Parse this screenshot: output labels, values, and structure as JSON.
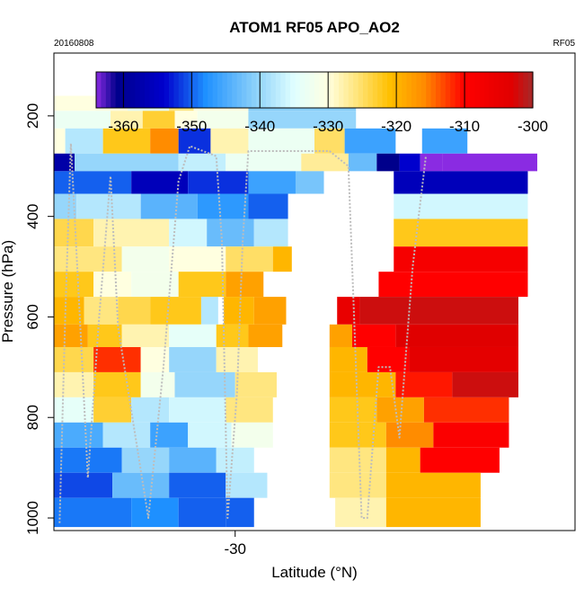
{
  "chart_data": {
    "type": "heatmap",
    "title": "ATOM1 RF05 APO_AO2",
    "date_label": "20160808",
    "flight_label": "RF05",
    "xlabel": "Latitude (°N)",
    "ylabel": "Pressure (hPa)",
    "x_ticks": [
      -30
    ],
    "y_ticks": [
      200,
      400,
      600,
      800,
      1000
    ],
    "xlim": [
      -39.6,
      -12.0
    ],
    "ylim": [
      1025,
      75
    ],
    "y_reversed": true,
    "colorbar": {
      "range": [
        -364,
        -300
      ],
      "ticks": [
        -360,
        -350,
        -340,
        -330,
        -320,
        -310,
        -300
      ],
      "stops": [
        {
          "v": -364,
          "c": "#8a2be2"
        },
        {
          "v": -361,
          "c": "#00008b"
        },
        {
          "v": -354,
          "c": "#0000cd"
        },
        {
          "v": -348,
          "c": "#1e90ff"
        },
        {
          "v": -341,
          "c": "#87cefa"
        },
        {
          "v": -335,
          "c": "#e0ffff"
        },
        {
          "v": -330,
          "c": "#ffffe0"
        },
        {
          "v": -326,
          "c": "#ffe680"
        },
        {
          "v": -321,
          "c": "#ffc000"
        },
        {
          "v": -316,
          "c": "#ff8c00"
        },
        {
          "v": -310,
          "c": "#ff0000"
        },
        {
          "v": -303,
          "c": "#e00000"
        },
        {
          "v": -300,
          "c": "#a52a2a"
        }
      ]
    },
    "heatmap_bands": [
      {
        "p": [
          160,
          190
        ],
        "cells": [
          [
            -39.6,
            -35.7,
            -330
          ],
          [
            -35.7,
            -33.5,
            -334
          ],
          [
            -33.5,
            -32.2,
            -326
          ],
          [
            -32.2,
            -29.3,
            -330
          ],
          [
            -29.3,
            -23.6,
            -341
          ],
          [
            -23.6,
            -14.0,
            null
          ]
        ]
      },
      {
        "p": [
          190,
          225
        ],
        "cells": [
          [
            -39.6,
            -36.6,
            -333
          ],
          [
            -36.6,
            -34.9,
            -328
          ],
          [
            -34.9,
            -33.2,
            -323
          ],
          [
            -33.2,
            -32.0,
            -330
          ],
          [
            -32.0,
            -29.3,
            -332
          ],
          [
            -29.3,
            -23.6,
            -340
          ]
        ]
      },
      {
        "p": [
          225,
          275
        ],
        "cells": [
          [
            -39.6,
            -39.0,
            -330
          ],
          [
            -39.0,
            -37.0,
            -338
          ],
          [
            -37.0,
            -34.5,
            -322
          ],
          [
            -34.5,
            -33.0,
            -316
          ],
          [
            -33.0,
            -31.3,
            -352
          ],
          [
            -31.3,
            -29.3,
            -328
          ],
          [
            -29.3,
            -25.8,
            -333
          ],
          [
            -25.8,
            -24.2,
            -325
          ],
          [
            -24.2,
            -21.5,
            -346
          ],
          [
            -20.1,
            -17.7,
            -346
          ]
        ]
      },
      {
        "p": [
          275,
          310
        ],
        "cells": [
          [
            -39.6,
            -38.5,
            -358
          ],
          [
            -38.5,
            -33.0,
            -340
          ],
          [
            -33.0,
            -30.5,
            -337
          ],
          [
            -30.5,
            -26.5,
            -333
          ],
          [
            -26.5,
            -24.0,
            -327
          ],
          [
            -24.0,
            -22.5,
            -343
          ],
          [
            -22.5,
            -21.3,
            -361
          ],
          [
            -21.3,
            -20.2,
            -354
          ],
          [
            -20.2,
            -19.0,
            -364
          ],
          [
            -19.0,
            -14.0,
            -364
          ]
        ]
      },
      {
        "p": [
          310,
          355
        ],
        "cells": [
          [
            -39.6,
            -35.5,
            -350
          ],
          [
            -35.5,
            -32.5,
            -356
          ],
          [
            -32.5,
            -29.3,
            -352
          ],
          [
            -29.3,
            -26.8,
            -346
          ],
          [
            -26.8,
            -25.3,
            -342
          ],
          [
            -21.6,
            -14.5,
            -356
          ]
        ]
      },
      {
        "p": [
          355,
          405
        ],
        "cells": [
          [
            -39.6,
            -38.4,
            -340
          ],
          [
            -38.4,
            -35.0,
            -338
          ],
          [
            -35.0,
            -32.0,
            -344
          ],
          [
            -32.0,
            -29.3,
            -347
          ],
          [
            -29.3,
            -27.2,
            -350
          ],
          [
            -21.6,
            -14.5,
            -336
          ]
        ]
      },
      {
        "p": [
          405,
          460
        ],
        "cells": [
          [
            -39.6,
            -37.5,
            -324
          ],
          [
            -37.5,
            -33.5,
            -328
          ],
          [
            -33.5,
            -31.5,
            -336
          ],
          [
            -31.5,
            -29.0,
            -343
          ],
          [
            -29.0,
            -27.2,
            -338
          ],
          [
            -21.6,
            -14.5,
            -322
          ]
        ]
      },
      {
        "p": [
          460,
          510
        ],
        "cells": [
          [
            -39.6,
            -36.0,
            -326
          ],
          [
            -36.0,
            -33.5,
            -332
          ],
          [
            -33.5,
            -30.5,
            -330
          ],
          [
            -30.5,
            -28.0,
            -325
          ],
          [
            -28.0,
            -27.0,
            -320
          ],
          [
            -21.6,
            -14.5,
            -308
          ]
        ]
      },
      {
        "p": [
          510,
          560
        ],
        "cells": [
          [
            -39.6,
            -37.5,
            -322
          ],
          [
            -37.5,
            -35.5,
            -330
          ],
          [
            -35.5,
            -33.0,
            -332
          ],
          [
            -33.0,
            -30.5,
            -322
          ],
          [
            -30.5,
            -28.5,
            -318
          ],
          [
            -22.4,
            -14.5,
            -310
          ]
        ]
      },
      {
        "p": [
          560,
          615
        ],
        "cells": [
          [
            -39.6,
            -38.0,
            -320
          ],
          [
            -38.0,
            -36.2,
            -326
          ],
          [
            -36.2,
            -34.5,
            -324
          ],
          [
            -34.5,
            -31.8,
            -322
          ],
          [
            -31.8,
            -30.9,
            -338
          ],
          [
            -30.6,
            -29.0,
            -320
          ],
          [
            -29.0,
            -27.3,
            -318
          ],
          [
            -24.6,
            -23.4,
            -305
          ],
          [
            -23.4,
            -15.0,
            -302
          ]
        ]
      },
      {
        "p": [
          615,
          660
        ],
        "cells": [
          [
            -39.6,
            -37.8,
            -318
          ],
          [
            -37.8,
            -36.0,
            -322
          ],
          [
            -36.0,
            -33.5,
            -328
          ],
          [
            -33.5,
            -31.0,
            -334
          ],
          [
            -31.0,
            -29.3,
            -322
          ],
          [
            -29.3,
            -27.5,
            -318
          ],
          [
            -25.0,
            -23.8,
            -318
          ],
          [
            -23.8,
            -21.5,
            -310
          ],
          [
            -21.5,
            -15.0,
            -303
          ]
        ]
      },
      {
        "p": [
          660,
          710
        ],
        "cells": [
          [
            -39.6,
            -37.5,
            -324
          ],
          [
            -37.5,
            -35.0,
            -312
          ],
          [
            -35.0,
            -33.5,
            -330
          ],
          [
            -33.5,
            -31.0,
            -340
          ],
          [
            -31.0,
            -28.8,
            -328
          ],
          [
            -25.0,
            -23.0,
            -320
          ],
          [
            -23.0,
            -20.8,
            -310
          ],
          [
            -20.8,
            -15.0,
            -304
          ]
        ]
      },
      {
        "p": [
          710,
          760
        ],
        "cells": [
          [
            -39.6,
            -37.5,
            -328
          ],
          [
            -37.5,
            -35.0,
            -322
          ],
          [
            -35.0,
            -33.2,
            -332
          ],
          [
            -33.2,
            -30.0,
            -340
          ],
          [
            -30.0,
            -27.8,
            -326
          ],
          [
            -25.0,
            -21.5,
            -320
          ],
          [
            -21.5,
            -18.5,
            -311
          ],
          [
            -18.5,
            -15.0,
            -302
          ]
        ]
      },
      {
        "p": [
          760,
          810
        ],
        "cells": [
          [
            -39.6,
            -37.5,
            -334
          ],
          [
            -37.5,
            -35.5,
            -323
          ],
          [
            -35.5,
            -33.5,
            -338
          ],
          [
            -33.5,
            -30.5,
            -336
          ],
          [
            -30.5,
            -28.0,
            -326
          ],
          [
            -25.0,
            -22.5,
            -322
          ],
          [
            -22.5,
            -20.0,
            -318
          ],
          [
            -20.0,
            -15.5,
            -312
          ]
        ]
      },
      {
        "p": [
          810,
          860
        ],
        "cells": [
          [
            -39.6,
            -37.0,
            -345
          ],
          [
            -37.0,
            -34.5,
            -338
          ],
          [
            -34.5,
            -32.5,
            -346
          ],
          [
            -32.5,
            -30.2,
            -336
          ],
          [
            -30.2,
            -28.0,
            -332
          ],
          [
            -25.0,
            -22.0,
            -322
          ],
          [
            -22.0,
            -19.5,
            -316
          ],
          [
            -19.5,
            -15.5,
            -309
          ]
        ]
      },
      {
        "p": [
          860,
          910
        ],
        "cells": [
          [
            -39.6,
            -36.0,
            -349
          ],
          [
            -36.0,
            -33.5,
            -340
          ],
          [
            -33.5,
            -31.0,
            -344
          ],
          [
            -31.0,
            -29.0,
            -337
          ],
          [
            -25.0,
            -22.0,
            -326
          ],
          [
            -22.0,
            -20.2,
            -320
          ],
          [
            -20.2,
            -16.0,
            -310
          ]
        ]
      },
      {
        "p": [
          910,
          960
        ],
        "cells": [
          [
            -39.6,
            -36.5,
            -351
          ],
          [
            -36.5,
            -33.5,
            -343
          ],
          [
            -33.5,
            -30.5,
            -350
          ],
          [
            -30.5,
            -28.3,
            -338
          ],
          [
            -25.0,
            -22.0,
            -326
          ],
          [
            -22.0,
            -17.0,
            -320
          ]
        ]
      },
      {
        "p": [
          960,
          1018
        ],
        "cells": [
          [
            -39.6,
            -35.5,
            -349
          ],
          [
            -35.5,
            -33.0,
            -348
          ],
          [
            -33.0,
            -30.5,
            -350
          ],
          [
            -30.5,
            -29.0,
            -350
          ],
          [
            -24.7,
            -22.0,
            -328
          ],
          [
            -22.0,
            -17.0,
            -320
          ]
        ]
      }
    ],
    "flight_track": [
      [
        -39.3,
        1010
      ],
      [
        -39.0,
        600
      ],
      [
        -38.7,
        255
      ],
      [
        -38.2,
        620
      ],
      [
        -37.8,
        920
      ],
      [
        -37.2,
        600
      ],
      [
        -36.6,
        320
      ],
      [
        -36.2,
        620
      ],
      [
        -34.6,
        1000
      ],
      [
        -33.8,
        700
      ],
      [
        -33.0,
        330
      ],
      [
        -32.4,
        260
      ],
      [
        -31.0,
        280
      ],
      [
        -30.7,
        450
      ],
      [
        -30.4,
        1000
      ],
      [
        -29.9,
        750
      ],
      [
        -29.6,
        450
      ],
      [
        -29.3,
        270
      ],
      [
        -27.5,
        270
      ],
      [
        -25.0,
        270
      ],
      [
        -24.0,
        300
      ],
      [
        -23.6,
        700
      ],
      [
        -23.3,
        1000
      ],
      [
        -23.0,
        1000
      ],
      [
        -22.4,
        700
      ],
      [
        -21.8,
        700
      ],
      [
        -21.3,
        840
      ],
      [
        -20.6,
        500
      ],
      [
        -19.9,
        280
      ]
    ]
  }
}
